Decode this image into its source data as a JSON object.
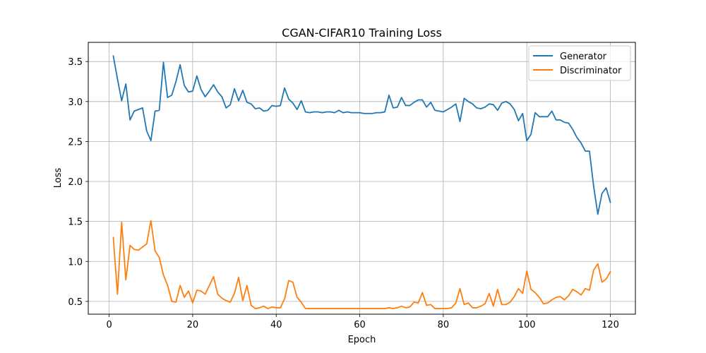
{
  "chart_data": {
    "type": "line",
    "title": "CGAN-CIFAR10 Training Loss",
    "xlabel": "Epoch",
    "ylabel": "Loss",
    "xlim": [
      -5,
      126
    ],
    "ylim": [
      0.34,
      3.74
    ],
    "xticks": [
      0,
      20,
      40,
      60,
      80,
      100,
      120
    ],
    "yticks": [
      0.5,
      1.0,
      1.5,
      2.0,
      2.5,
      3.0,
      3.5
    ],
    "ytick_labels": [
      "0.5",
      "1.0",
      "1.5",
      "2.0",
      "2.5",
      "3.0",
      "3.5"
    ],
    "grid": true,
    "legend_position": "top-right",
    "x": [
      1,
      2,
      3,
      4,
      5,
      6,
      7,
      8,
      9,
      10,
      11,
      12,
      13,
      14,
      15,
      16,
      17,
      18,
      19,
      20,
      21,
      22,
      23,
      24,
      25,
      26,
      27,
      28,
      29,
      30,
      31,
      32,
      33,
      34,
      35,
      36,
      37,
      38,
      39,
      40,
      41,
      42,
      43,
      44,
      45,
      46,
      47,
      48,
      49,
      50,
      51,
      52,
      53,
      54,
      55,
      56,
      57,
      58,
      59,
      60,
      61,
      62,
      63,
      64,
      65,
      66,
      67,
      68,
      69,
      70,
      71,
      72,
      73,
      74,
      75,
      76,
      77,
      78,
      79,
      80,
      81,
      82,
      83,
      84,
      85,
      86,
      87,
      88,
      89,
      90,
      91,
      92,
      93,
      94,
      95,
      96,
      97,
      98,
      99,
      100,
      101,
      102,
      103,
      104,
      105,
      106,
      107,
      108,
      109,
      110,
      111,
      112,
      113,
      114,
      115,
      116,
      117,
      118,
      119,
      120
    ],
    "series": [
      {
        "name": "Generator",
        "color": "#1f77b4",
        "values": [
          3.57,
          3.28,
          3.01,
          3.22,
          2.77,
          2.88,
          2.9,
          2.92,
          2.63,
          2.51,
          2.88,
          2.89,
          3.49,
          3.05,
          3.08,
          3.25,
          3.46,
          3.2,
          3.12,
          3.13,
          3.32,
          3.15,
          3.06,
          3.13,
          3.21,
          3.12,
          3.06,
          2.92,
          2.96,
          3.16,
          3.01,
          3.14,
          2.99,
          2.97,
          2.91,
          2.92,
          2.88,
          2.89,
          2.95,
          2.94,
          2.95,
          3.17,
          3.03,
          2.98,
          2.9,
          3.01,
          2.87,
          2.86,
          2.87,
          2.87,
          2.86,
          2.87,
          2.87,
          2.86,
          2.89,
          2.86,
          2.87,
          2.86,
          2.86,
          2.86,
          2.85,
          2.85,
          2.85,
          2.86,
          2.86,
          2.87,
          3.08,
          2.92,
          2.93,
          3.05,
          2.95,
          2.95,
          2.99,
          3.02,
          3.02,
          2.93,
          2.99,
          2.89,
          2.88,
          2.87,
          2.9,
          2.93,
          2.97,
          2.75,
          3.04,
          3.0,
          2.97,
          2.92,
          2.91,
          2.93,
          2.97,
          2.96,
          2.89,
          2.98,
          3.0,
          2.97,
          2.9,
          2.76,
          2.85,
          2.51,
          2.59,
          2.86,
          2.81,
          2.81,
          2.81,
          2.88,
          2.77,
          2.77,
          2.74,
          2.73,
          2.65,
          2.55,
          2.48,
          2.38,
          2.38,
          1.94,
          1.59,
          1.85,
          1.92,
          1.74
        ]
      },
      {
        "name": "Discriminator",
        "color": "#ff7f0e",
        "values": [
          1.3,
          0.59,
          1.49,
          0.77,
          1.2,
          1.15,
          1.14,
          1.18,
          1.22,
          1.51,
          1.13,
          1.05,
          0.83,
          0.7,
          0.5,
          0.49,
          0.7,
          0.55,
          0.63,
          0.48,
          0.64,
          0.63,
          0.59,
          0.7,
          0.81,
          0.59,
          0.54,
          0.51,
          0.49,
          0.6,
          0.8,
          0.51,
          0.7,
          0.45,
          0.41,
          0.42,
          0.44,
          0.41,
          0.43,
          0.42,
          0.42,
          0.53,
          0.76,
          0.74,
          0.55,
          0.49,
          0.41,
          0.41,
          0.41,
          0.41,
          0.41,
          0.41,
          0.41,
          0.41,
          0.41,
          0.41,
          0.41,
          0.41,
          0.41,
          0.41,
          0.41,
          0.41,
          0.41,
          0.41,
          0.41,
          0.41,
          0.42,
          0.41,
          0.42,
          0.44,
          0.42,
          0.43,
          0.49,
          0.48,
          0.61,
          0.45,
          0.46,
          0.41,
          0.41,
          0.41,
          0.41,
          0.42,
          0.48,
          0.66,
          0.46,
          0.48,
          0.42,
          0.42,
          0.44,
          0.47,
          0.6,
          0.44,
          0.65,
          0.46,
          0.46,
          0.49,
          0.56,
          0.66,
          0.6,
          0.88,
          0.65,
          0.61,
          0.55,
          0.47,
          0.48,
          0.52,
          0.55,
          0.56,
          0.52,
          0.57,
          0.65,
          0.62,
          0.58,
          0.66,
          0.64,
          0.89,
          0.97,
          0.74,
          0.78,
          0.87
        ]
      }
    ]
  }
}
